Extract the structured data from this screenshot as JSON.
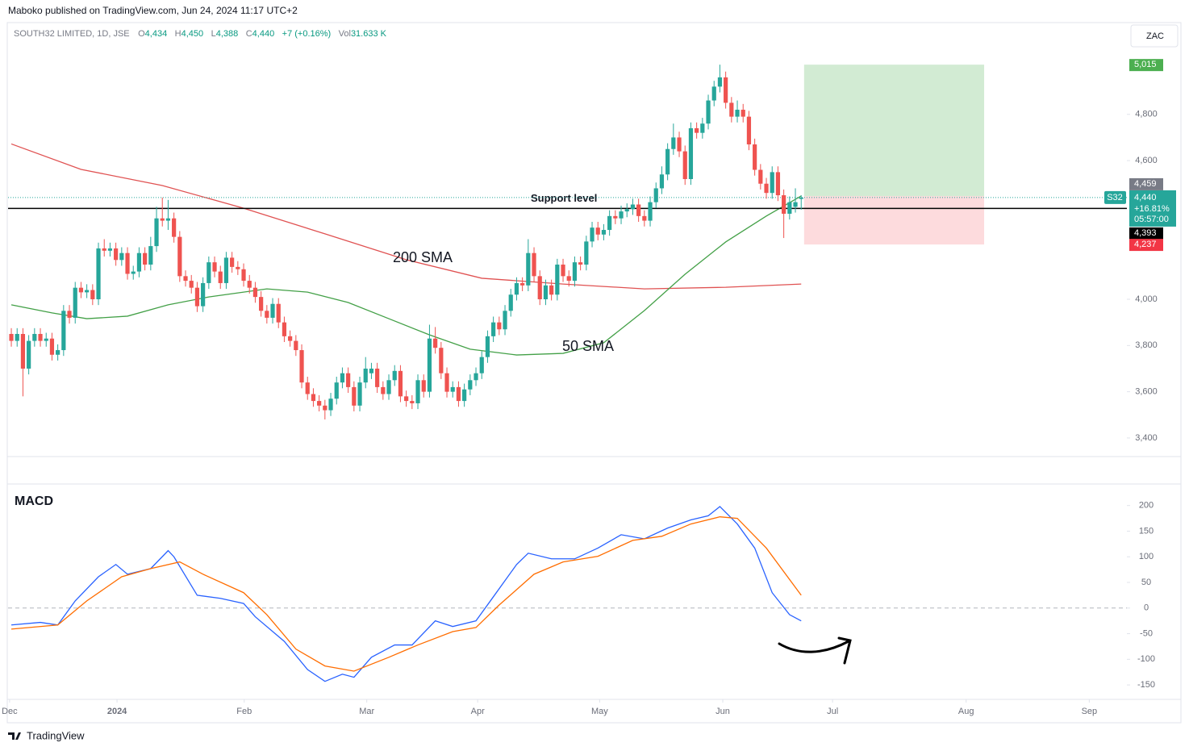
{
  "header": {
    "publisher": "Maboko published on TradingView.com, Jun 24, 2024 11:17 UTC+2",
    "symbol": "SOUTH32 LIMITED, 1D, JSE",
    "ohlc": [
      {
        "key": "O",
        "value": "4,434"
      },
      {
        "key": "H",
        "value": "4,450"
      },
      {
        "key": "L",
        "value": "4,388"
      },
      {
        "key": "C",
        "value": "4,440"
      }
    ],
    "change": "+7 (+0.16%)",
    "volume_key": "Vol",
    "volume": "31.633 K",
    "currency": "ZAC"
  },
  "footer": {
    "brand": "TradingView"
  },
  "chart_data": [
    {
      "type": "candlestick",
      "xlim": [
        -0.56,
        191.8
      ],
      "ylim": [
        3323,
        5190
      ],
      "yticks": [
        {
          "value": 3400,
          "label": "3,400"
        },
        {
          "value": 3600,
          "label": "3,600"
        },
        {
          "value": 3800,
          "label": "3,800"
        },
        {
          "value": 4000,
          "label": "4,000"
        },
        {
          "value": 4600,
          "label": "4,600"
        },
        {
          "value": 4800,
          "label": "4,800"
        }
      ],
      "up_color": "#26a69a",
      "down_color": "#ef5350",
      "candles": {
        "open": [
          3850,
          3820,
          3850,
          3700,
          3820,
          3850,
          3820,
          3830,
          3760,
          3780,
          3950,
          3920,
          4050,
          4030,
          4040,
          4000,
          4220,
          4210,
          4220,
          4170,
          4200,
          4110,
          4120,
          4200,
          4150,
          4230,
          4350,
          4340,
          4350,
          4270,
          4100,
          4080,
          4050,
          3970,
          4070,
          4160,
          4120,
          4070,
          4180,
          4140,
          4130,
          4080,
          4050,
          4010,
          3950,
          3920,
          3980,
          3900,
          3840,
          3820,
          3780,
          3640,
          3590,
          3560,
          3540,
          3520,
          3570,
          3640,
          3680,
          3620,
          3540,
          3640,
          3680,
          3700,
          3620,
          3590,
          3650,
          3690,
          3580,
          3560,
          3550,
          3650,
          3600,
          3830,
          3790,
          3680,
          3600,
          3620,
          3560,
          3610,
          3650,
          3680,
          3750,
          3840,
          3900,
          3870,
          3950,
          4020,
          4070,
          4060,
          4200,
          4100,
          4000,
          4060,
          4020,
          4150,
          4100,
          4080,
          4160,
          4150,
          4250,
          4310,
          4280,
          4300,
          4360,
          4350,
          4380,
          4390,
          4410,
          4360,
          4340,
          4420,
          4480,
          4540,
          4650,
          4700,
          4640,
          4520,
          4740,
          4720,
          4760,
          4860,
          4920,
          4960,
          4850,
          4790,
          4820,
          4790,
          4670,
          4560,
          4500,
          4460,
          4550,
          4450,
          4370,
          4400,
          4434
        ],
        "high": [
          3875,
          3875,
          3875,
          3845,
          3875,
          3875,
          3855,
          3855,
          3805,
          3975,
          3975,
          4075,
          4075,
          4065,
          4065,
          4245,
          4260,
          4245,
          4245,
          4225,
          4225,
          4145,
          4225,
          4225,
          4270,
          4400,
          4440,
          4430,
          4375,
          4295,
          4125,
          4105,
          4075,
          4095,
          4185,
          4185,
          4145,
          4205,
          4205,
          4165,
          4155,
          4105,
          4075,
          4035,
          3975,
          4005,
          4005,
          3925,
          3865,
          3845,
          3805,
          3665,
          3615,
          3585,
          3565,
          3595,
          3665,
          3705,
          3705,
          3645,
          3665,
          3750,
          3725,
          3725,
          3645,
          3675,
          3715,
          3715,
          3605,
          3585,
          3675,
          3675,
          3890,
          3880,
          3815,
          3705,
          3645,
          3645,
          3635,
          3675,
          3705,
          3775,
          3865,
          3925,
          3925,
          3975,
          4045,
          4095,
          4095,
          4260,
          4225,
          4125,
          4085,
          4085,
          4175,
          4175,
          4125,
          4185,
          4185,
          4275,
          4335,
          4335,
          4325,
          4385,
          4385,
          4405,
          4415,
          4435,
          4435,
          4385,
          4445,
          4505,
          4575,
          4675,
          4760,
          4725,
          4665,
          4765,
          4765,
          4785,
          4885,
          4945,
          5015,
          4985,
          4875,
          4860,
          4845,
          4815,
          4695,
          4585,
          4525,
          4575,
          4575,
          4475,
          4445,
          4480,
          4450
        ],
        "low": [
          3795,
          3795,
          3580,
          3675,
          3795,
          3795,
          3795,
          3735,
          3735,
          3755,
          3895,
          3895,
          4005,
          4005,
          3975,
          3975,
          4185,
          4185,
          4145,
          4145,
          4085,
          4085,
          4095,
          4125,
          4125,
          4205,
          4315,
          4300,
          4245,
          4075,
          4055,
          4025,
          3945,
          3945,
          4045,
          4095,
          4045,
          4045,
          4115,
          4105,
          4055,
          4025,
          3985,
          3925,
          3895,
          3895,
          3875,
          3815,
          3795,
          3755,
          3615,
          3565,
          3535,
          3515,
          3480,
          3495,
          3545,
          3615,
          3595,
          3515,
          3515,
          3615,
          3655,
          3595,
          3565,
          3565,
          3625,
          3555,
          3535,
          3525,
          3525,
          3575,
          3575,
          3765,
          3655,
          3575,
          3575,
          3535,
          3535,
          3585,
          3625,
          3655,
          3725,
          3815,
          3845,
          3845,
          3925,
          3995,
          4035,
          4035,
          4075,
          3975,
          3975,
          3995,
          3995,
          4075,
          4055,
          4055,
          4125,
          4125,
          4225,
          4255,
          4255,
          4275,
          4325,
          4325,
          4355,
          4365,
          4335,
          4315,
          4315,
          4395,
          4455,
          4515,
          4625,
          4615,
          4495,
          4495,
          4695,
          4695,
          4735,
          4835,
          4895,
          4825,
          4765,
          4765,
          4765,
          4645,
          4535,
          4475,
          4435,
          4435,
          4425,
          4265,
          4345,
          4375,
          4388
        ],
        "close": [
          3820,
          3850,
          3700,
          3820,
          3850,
          3820,
          3830,
          3760,
          3780,
          3950,
          3920,
          4050,
          4030,
          4040,
          4000,
          4220,
          4210,
          4220,
          4170,
          4200,
          4110,
          4120,
          4200,
          4150,
          4230,
          4350,
          4340,
          4350,
          4270,
          4100,
          4080,
          4050,
          3970,
          4070,
          4160,
          4120,
          4070,
          4180,
          4140,
          4130,
          4080,
          4050,
          4010,
          3950,
          3920,
          3980,
          3900,
          3840,
          3820,
          3780,
          3640,
          3590,
          3560,
          3540,
          3520,
          3570,
          3640,
          3680,
          3620,
          3540,
          3640,
          3700,
          3700,
          3620,
          3590,
          3650,
          3690,
          3580,
          3560,
          3550,
          3650,
          3600,
          3830,
          3790,
          3680,
          3600,
          3620,
          3560,
          3610,
          3650,
          3680,
          3750,
          3840,
          3900,
          3870,
          3950,
          4020,
          4070,
          4060,
          4200,
          4100,
          4000,
          4060,
          4020,
          4150,
          4100,
          4080,
          4160,
          4150,
          4250,
          4310,
          4280,
          4300,
          4360,
          4350,
          4380,
          4390,
          4410,
          4360,
          4340,
          4420,
          4480,
          4540,
          4650,
          4700,
          4640,
          4520,
          4740,
          4720,
          4760,
          4860,
          4920,
          4960,
          4850,
          4790,
          4820,
          4790,
          4670,
          4560,
          4500,
          4460,
          4550,
          4450,
          4370,
          4420,
          4420,
          4440
        ]
      },
      "series": [
        {
          "name": "200 SMA",
          "color": "#e05252",
          "x": [
            0,
            12,
            26,
            40,
            54,
            68,
            81,
            95,
            109,
            123,
            136
          ],
          "values": [
            4672,
            4562,
            4492,
            4394,
            4283,
            4171,
            4091,
            4066,
            4045,
            4052,
            4066
          ]
        },
        {
          "name": "50 SMA",
          "color": "#43a047",
          "x": [
            0,
            7,
            13,
            20,
            27,
            34,
            44,
            51,
            58,
            65,
            72,
            79,
            87,
            95,
            102,
            109,
            116,
            123,
            130,
            136
          ],
          "values": [
            3976,
            3941,
            3916,
            3927,
            3976,
            4010,
            4045,
            4031,
            3986,
            3916,
            3846,
            3784,
            3759,
            3766,
            3812,
            3951,
            4108,
            4248,
            4360,
            4447
          ]
        }
      ],
      "support": {
        "value": 4393,
        "label": "Support level"
      },
      "position": {
        "x_start": 136.5,
        "x_end": 167.5,
        "entry": 4446,
        "target": 5015,
        "stop": 4237
      },
      "last": {
        "symbol": "S32",
        "value": 4440,
        "label": "4,440",
        "change": "+16.81%",
        "countdown": "05:57:00",
        "color": "#26a69a"
      },
      "price_labels": [
        {
          "value": 5015,
          "label": "5,015",
          "color": "#4caf50"
        },
        {
          "value": 4459,
          "label": "4,459",
          "color": "#787b86"
        },
        {
          "value": 4393,
          "label": "4,393",
          "color": "#000000"
        },
        {
          "value": 4237,
          "label": "4,237",
          "color": "#f23645"
        }
      ]
    },
    {
      "type": "line",
      "title": "MACD",
      "xlim": [
        -0.56,
        191.8
      ],
      "ylim": [
        -175,
        242
      ],
      "yticks": [
        200,
        150,
        100,
        50,
        0,
        -50,
        -100,
        -150
      ],
      "zero_line": true,
      "xticks": [
        {
          "value": -0.3,
          "label": "Dec"
        },
        {
          "value": 18.2,
          "label": "2024"
        },
        {
          "value": 40.1,
          "label": "Feb"
        },
        {
          "value": 61.2,
          "label": "Mar"
        },
        {
          "value": 80.3,
          "label": "Apr"
        },
        {
          "value": 101.3,
          "label": "May"
        },
        {
          "value": 122.5,
          "label": "Jun"
        },
        {
          "value": 141.4,
          "label": "Jul"
        },
        {
          "value": 164.4,
          "label": "Aug"
        },
        {
          "value": 185.6,
          "label": "Sep"
        }
      ],
      "series": [
        {
          "name": "MACD",
          "color": "#2962ff",
          "x": [
            0,
            5,
            8,
            11,
            15,
            18,
            20,
            24,
            27,
            28,
            32,
            36,
            40,
            42,
            47,
            51,
            54,
            57,
            59,
            62,
            66,
            69,
            73,
            76,
            80,
            83,
            87,
            89,
            93,
            97,
            101,
            105,
            109,
            113,
            117,
            120,
            122,
            125,
            128,
            131,
            134,
            136
          ],
          "values": [
            -33,
            -28,
            -33,
            14,
            61,
            85,
            66,
            77,
            112,
            100,
            25,
            19,
            9,
            -17,
            -65,
            -120,
            -143,
            -129,
            -135,
            -96,
            -72,
            -72,
            -25,
            -36,
            -25,
            22,
            85,
            107,
            96,
            96,
            117,
            143,
            135,
            156,
            172,
            180,
            198,
            164,
            117,
            30,
            -13,
            -25
          ]
        },
        {
          "name": "Signal",
          "color": "#ff6d00",
          "x": [
            0,
            8,
            13,
            19,
            24,
            29,
            33,
            40,
            44,
            49,
            54,
            59,
            65,
            70,
            76,
            80,
            84,
            90,
            95,
            101,
            107,
            112,
            117,
            122,
            125,
            130,
            136
          ],
          "values": [
            -41,
            -33,
            14,
            61,
            77,
            90,
            66,
            30,
            -13,
            -80,
            -113,
            -123,
            -96,
            -72,
            -46,
            -38,
            6,
            66,
            90,
            101,
            132,
            140,
            164,
            178,
            175,
            117,
            25
          ]
        }
      ]
    }
  ]
}
